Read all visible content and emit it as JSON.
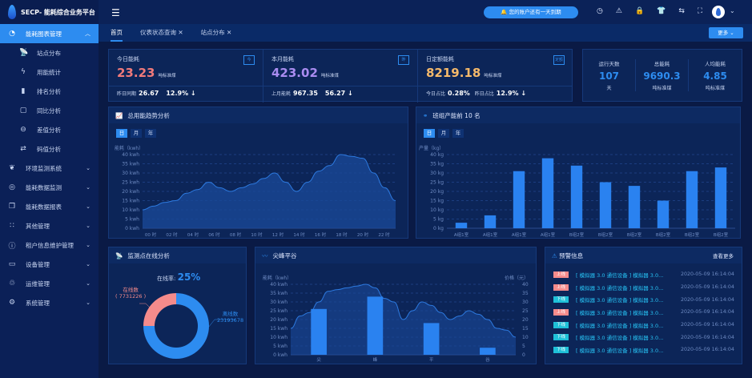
{
  "app": {
    "title": "SECP- 能耗综合业务平台"
  },
  "sidebar": {
    "items": [
      {
        "label": "能耗图表管理",
        "icon": "pie-chart-icon",
        "active": true,
        "expanded": true
      },
      {
        "label": "站点分布",
        "icon": "antenna-icon",
        "sub": true
      },
      {
        "label": "用能统计",
        "icon": "lightning-icon",
        "sub": true
      },
      {
        "label": "排名分析",
        "icon": "bar-chart-icon",
        "sub": true
      },
      {
        "label": "同比分析",
        "icon": "square-icon",
        "sub": true
      },
      {
        "label": "差值分析",
        "icon": "minus-circle-icon",
        "sub": true
      },
      {
        "label": "码值分析",
        "icon": "swap-icon",
        "sub": true
      },
      {
        "label": "环境监测系统",
        "icon": "leaf-icon"
      },
      {
        "label": "能耗数据监测",
        "icon": "gauge-icon"
      },
      {
        "label": "能耗数据报表",
        "icon": "window-icon"
      },
      {
        "label": "其他管理",
        "icon": "grid-icon"
      },
      {
        "label": "租户信息维护管理",
        "icon": "info-icon"
      },
      {
        "label": "设备管理",
        "icon": "monitor-icon"
      },
      {
        "label": "运维管理",
        "icon": "recycle-icon"
      },
      {
        "label": "系统管理",
        "icon": "gear-icon"
      }
    ]
  },
  "header": {
    "notice": "您的账户还有一天到期",
    "icons": [
      "dashboard-icon",
      "warning-icon",
      "lock-icon",
      "shirt-icon",
      "translate-icon",
      "fullscreen-icon"
    ]
  },
  "tabs": [
    {
      "label": "首页",
      "active": true
    },
    {
      "label": "仪表状态查询",
      "closable": true
    },
    {
      "label": "站点分布",
      "closable": true
    }
  ],
  "more_label": "更多",
  "stats": [
    {
      "label": "今日能耗",
      "value": "23.23",
      "unit": "吨标准煤",
      "color": "#f07a7a",
      "badge": "今",
      "foot": [
        {
          "k": "昨日同期",
          "v": "26.67"
        },
        {
          "k": "",
          "v": "12.9% ↓"
        }
      ]
    },
    {
      "label": "本月能耗",
      "value": "423.02",
      "unit": "吨标准煤",
      "color": "#a98cf0",
      "badge": "昨",
      "foot": [
        {
          "k": "上月能耗",
          "v": "967.35"
        },
        {
          "k": "",
          "v": "56.27 ↓"
        }
      ]
    },
    {
      "label": "日定额能耗",
      "value": "8219.18",
      "unit": "吨标准煤",
      "color": "#f5b96a",
      "badge": "定额",
      "foot": [
        {
          "k": "今日占比",
          "v": "0.28%"
        },
        {
          "k": "昨日占比",
          "v": "12.9% ↓"
        }
      ]
    }
  ],
  "kpis": [
    {
      "label": "运行天数",
      "value": "107",
      "unit": "天"
    },
    {
      "label": "总能耗",
      "value": "9690.3",
      "unit": "吨标准煤"
    },
    {
      "label": "人均能耗",
      "value": "4.85",
      "unit": "吨标准煤"
    }
  ],
  "period": [
    "日",
    "月",
    "年"
  ],
  "panels": {
    "trend": "总用能趋势分析",
    "rank": "班组产能前 10 名",
    "online": "监测点在线分析",
    "peak": "尖峰平谷",
    "alarm": "预警信息",
    "alarm_more": "查看更多"
  },
  "online": {
    "rate_label": "在线率:",
    "rate": "25%",
    "online_label": "在线数",
    "online_value": "( 7731226 )",
    "offline_label": "离线数",
    "offline_value": "23193678"
  },
  "alarms": [
    {
      "tag": "上线",
      "color": "#f58b8b",
      "msg": "[ 模拟器 3.0 通信设备 ] 模拟器 3.0...",
      "time": "2020-05-09 16:14:04"
    },
    {
      "tag": "上线",
      "color": "#f58b8b",
      "msg": "[ 模拟器 3.0 通信设备 ] 模拟器 3.0...",
      "time": "2020-05-09 16:14:04"
    },
    {
      "tag": "下线",
      "color": "#1ec0d8",
      "msg": "[ 模拟器 3.0 通信设备 ] 模拟器 3.0...",
      "time": "2020-05-09 16:14:04"
    },
    {
      "tag": "上线",
      "color": "#f58b8b",
      "msg": "[ 模拟器 3.0 通信设备 ] 模拟器 3.0...",
      "time": "2020-05-09 16:14:04"
    },
    {
      "tag": "下线",
      "color": "#1ec0d8",
      "msg": "[ 模拟器 3.0 通信设备 ] 模拟器 3.0...",
      "time": "2020-05-09 16:14:04"
    },
    {
      "tag": "下线",
      "color": "#1ec0d8",
      "msg": "[ 模拟器 3.0 通信设备 ] 模拟器 3.0...",
      "time": "2020-05-09 16:14:04"
    },
    {
      "tag": "下线",
      "color": "#1ec0d8",
      "msg": "[ 模拟器 3.0 通信设备 ] 模拟器 3.0...",
      "time": "2020-05-09 16:14:04"
    }
  ],
  "chart_data": [
    {
      "type": "area",
      "ylabel": "能耗（kwh）",
      "ylim": [
        0,
        40
      ],
      "yticks": [
        "0 kwh",
        "5 kwh",
        "10 kwh",
        "15 kwh",
        "20 kwh",
        "25 kwh",
        "30 kwh",
        "35 kwh",
        "40 kwh"
      ],
      "xticks": [
        "00 时",
        "02 时",
        "04 时",
        "06 时",
        "08 时",
        "10 时",
        "12 时",
        "14 时",
        "16 时",
        "18 时",
        "20 时",
        "22 时"
      ],
      "x": [
        0,
        1,
        2,
        3,
        4,
        5,
        6,
        7,
        8,
        9,
        10,
        11,
        12,
        13,
        14,
        15,
        16,
        17,
        18,
        19,
        20,
        21,
        22,
        23
      ],
      "values": [
        10,
        12,
        14,
        15,
        19,
        21,
        25,
        22,
        20,
        22,
        24,
        27,
        30,
        25,
        20,
        25,
        31,
        34,
        40,
        39,
        38,
        30,
        22,
        15
      ]
    },
    {
      "type": "bar",
      "ylabel": "产量（kg）",
      "ylim": [
        0,
        40
      ],
      "yticks": [
        "0 kg",
        "5 kg",
        "10 kg",
        "15 kg",
        "20 kg",
        "25 kg",
        "30 kg",
        "35 kg",
        "40 kg"
      ],
      "categories": [
        "A组1室",
        "A组1室",
        "A组1室",
        "A组1室",
        "B组2室",
        "B组2室",
        "B组2室",
        "B组2室",
        "B组2室",
        "B组2室"
      ],
      "values": [
        3,
        7,
        31,
        38,
        34,
        25,
        23,
        15,
        31,
        33
      ]
    },
    {
      "type": "pie",
      "series": [
        {
          "name": "在线数",
          "value": 7731226,
          "color": "#f58b8b"
        },
        {
          "name": "离线数",
          "value": 23193678,
          "color": "#2d8cf0"
        }
      ]
    },
    {
      "type": "bar+area",
      "ylabel": "能耗（kwh）",
      "y2label": "价格（元）",
      "ylim": [
        0,
        40
      ],
      "y2lim": [
        0,
        40
      ],
      "yticks": [
        "0 kwh",
        "5 kwh",
        "10 kwh",
        "15 kwh",
        "20 kwh",
        "25 kwh",
        "30 kwh",
        "35 kwh",
        "40 kwh"
      ],
      "y2ticks": [
        "0",
        "5",
        "10",
        "15",
        "20",
        "25",
        "30",
        "35",
        "40"
      ],
      "categories": [
        "尖",
        "峰",
        "平",
        "谷"
      ],
      "values": [
        26,
        33,
        18,
        4
      ],
      "area_values": [
        15,
        22,
        24,
        30,
        36,
        37,
        38,
        39,
        40,
        38,
        32,
        30,
        20,
        25,
        30,
        28,
        24,
        20,
        22,
        25,
        23,
        20,
        15,
        14,
        10
      ]
    }
  ]
}
